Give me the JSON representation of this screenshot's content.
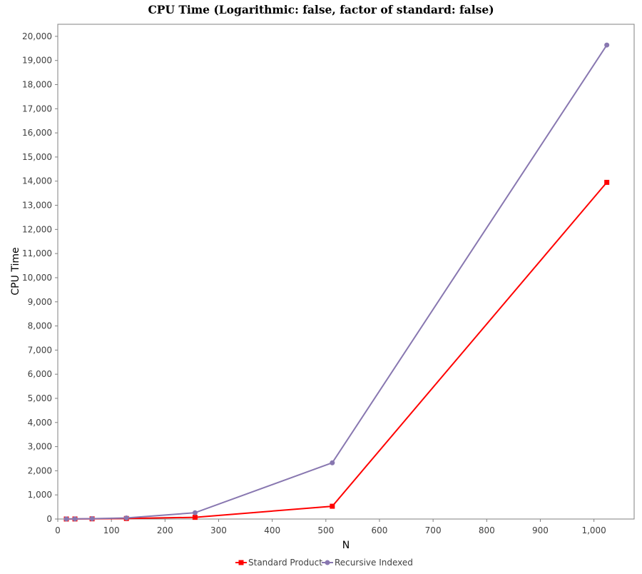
{
  "chart_data": {
    "type": "line",
    "title": "CPU Time (Logarithmic: false, factor of standard: false)",
    "xlabel": "N",
    "ylabel": "CPU Time",
    "xlim": [
      0,
      1075
    ],
    "ylim": [
      0,
      20500
    ],
    "x_ticks": [
      0,
      100,
      200,
      300,
      400,
      500,
      600,
      700,
      800,
      900,
      1000
    ],
    "x_tick_labels": [
      "0",
      "100",
      "200",
      "300",
      "400",
      "500",
      "600",
      "700",
      "800",
      "900",
      "1,000"
    ],
    "y_ticks": [
      0,
      1000,
      2000,
      3000,
      4000,
      5000,
      6000,
      7000,
      8000,
      9000,
      10000,
      11000,
      12000,
      13000,
      14000,
      15000,
      16000,
      17000,
      18000,
      19000,
      20000
    ],
    "y_tick_labels": [
      "0",
      "1,000",
      "2,000",
      "3,000",
      "4,000",
      "5,000",
      "6,000",
      "7,000",
      "8,000",
      "9,000",
      "10,000",
      "11,000",
      "12,000",
      "13,000",
      "14,000",
      "15,000",
      "16,000",
      "17,000",
      "18,000",
      "19,000",
      "20,000"
    ],
    "grid": false,
    "legend_position": "bottom",
    "x": [
      16,
      32,
      64,
      128,
      256,
      512,
      1024
    ],
    "series": [
      {
        "name": "Standard Product",
        "color": "#ff0000",
        "marker": "square",
        "values": [
          1,
          3,
          8,
          22,
          70,
          530,
          13950
        ]
      },
      {
        "name": "Recursive Indexed",
        "color": "#8877b0",
        "marker": "circle",
        "values": [
          2,
          5,
          14,
          45,
          260,
          2330,
          19640
        ]
      }
    ]
  }
}
